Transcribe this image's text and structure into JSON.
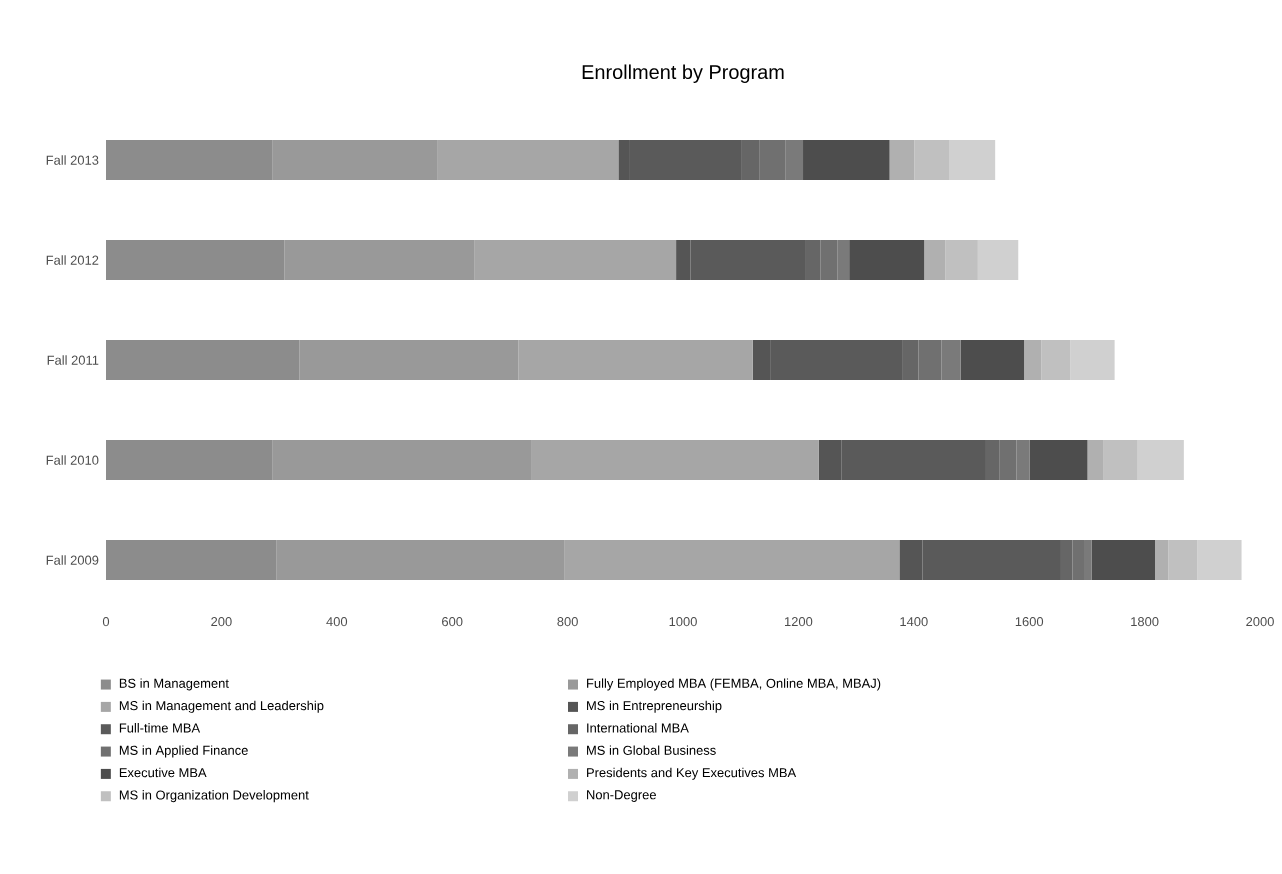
{
  "chart_data": {
    "type": "bar",
    "title": "Enrollment by Program",
    "orientation": "horizontal",
    "stacked": true,
    "legend": "bottom",
    "categories": [
      "Fall 2013",
      "Fall 2012",
      "Fall 2011",
      "Fall 2010",
      "Fall 2009"
    ],
    "xlim": [
      0,
      2000
    ],
    "xticks": [
      0,
      200,
      400,
      600,
      800,
      1000,
      1200,
      1400,
      1600,
      1800,
      2000
    ],
    "series": [
      {
        "name": "BS in Management",
        "color": "#8c8c8c",
        "values": [
          288,
          309,
          335,
          288,
          295
        ]
      },
      {
        "name": "Fully Employed MBA (FEMBA, Online MBA, MBAJ)",
        "color": "#999999",
        "values": [
          287,
          330,
          380,
          450,
          500
        ]
      },
      {
        "name": "MS in Management and Leadership",
        "color": "#a6a6a6",
        "values": [
          313,
          349,
          406,
          497,
          580
        ]
      },
      {
        "name": "MS in Entrepreneurship",
        "color": "#555555",
        "values": [
          20,
          25,
          30,
          40,
          40
        ]
      },
      {
        "name": "Full-time MBA",
        "color": "#5a5a5a",
        "values": [
          194,
          200,
          230,
          250,
          240
        ]
      },
      {
        "name": "International MBA",
        "color": "#666666",
        "values": [
          30,
          25,
          27,
          23,
          20
        ]
      },
      {
        "name": "MS in Applied Finance",
        "color": "#707070",
        "values": [
          46,
          30,
          40,
          30,
          20
        ]
      },
      {
        "name": "MS in Global Business",
        "color": "#7a7a7a",
        "values": [
          30,
          20,
          33,
          23,
          13
        ]
      },
      {
        "name": "Executive MBA",
        "color": "#4d4d4d",
        "values": [
          150,
          130,
          110,
          100,
          110
        ]
      },
      {
        "name": "Presidents and Key Executives MBA",
        "color": "#b0b0b0",
        "values": [
          43,
          37,
          30,
          27,
          23
        ]
      },
      {
        "name": "MS in Organization Development",
        "color": "#c0c0c0",
        "values": [
          60,
          56,
          50,
          60,
          50
        ]
      },
      {
        "name": "Non-Degree",
        "color": "#d0d0d0",
        "values": [
          80,
          70,
          77,
          80,
          77
        ]
      }
    ]
  }
}
